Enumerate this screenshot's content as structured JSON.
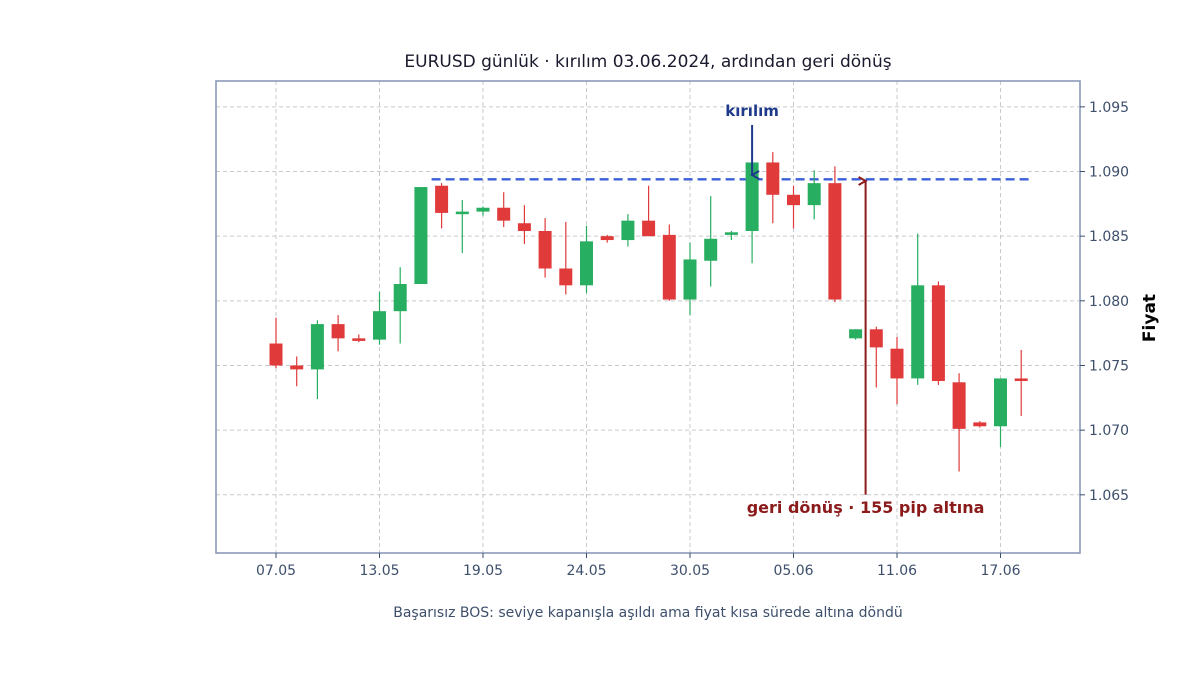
{
  "chart_data": {
    "type": "candlestick",
    "title": "EURUSD günlük · kırılım 03.06.2024, ardından geri dönüş",
    "ylabel": "Fiyat",
    "xlabel": "",
    "caption": "Başarısız BOS: seviye kapanışla aşıldı ama fiyat kısa sürede altına döndü",
    "ylim": [
      1.0605,
      1.097
    ],
    "x_tick_labels": [
      "07.05",
      "13.05",
      "19.05",
      "24.05",
      "30.05",
      "05.06",
      "11.06",
      "17.06"
    ],
    "x_tick_indices": [
      0,
      5,
      10,
      15,
      20,
      25,
      30,
      35
    ],
    "y_ticks": [
      1.065,
      1.07,
      1.075,
      1.08,
      1.085,
      1.09,
      1.095
    ],
    "y_tick_labels": [
      "1.065",
      "1.070",
      "1.075",
      "1.080",
      "1.085",
      "1.090",
      "1.095"
    ],
    "grid": true,
    "colors": {
      "up": "#27ae60",
      "down": "#e03a3a",
      "level": "#3b5fd9",
      "annotation_top": "#1e3a8a",
      "annotation_bottom": "#8b1a1a",
      "frame": "#8a9ab8"
    },
    "level": {
      "value": 1.0894,
      "start_index": 8,
      "end_index": 36
    },
    "candles": [
      {
        "o": 1.0767,
        "h": 1.0787,
        "l": 1.0748,
        "c": 1.075
      },
      {
        "o": 1.075,
        "h": 1.0757,
        "l": 1.0734,
        "c": 1.0747
      },
      {
        "o": 1.0747,
        "h": 1.0785,
        "l": 1.0724,
        "c": 1.0782
      },
      {
        "o": 1.0782,
        "h": 1.0789,
        "l": 1.0761,
        "c": 1.0771
      },
      {
        "o": 1.0771,
        "h": 1.0774,
        "l": 1.0768,
        "c": 1.0769
      },
      {
        "o": 1.077,
        "h": 1.0807,
        "l": 1.0766,
        "c": 1.0792
      },
      {
        "o": 1.0792,
        "h": 1.0826,
        "l": 1.0767,
        "c": 1.0813
      },
      {
        "o": 1.0813,
        "h": 1.0887,
        "l": 1.0813,
        "c": 1.0888
      },
      {
        "o": 1.0889,
        "h": 1.0891,
        "l": 1.0856,
        "c": 1.0868
      },
      {
        "o": 1.0867,
        "h": 1.0878,
        "l": 1.0837,
        "c": 1.0869
      },
      {
        "o": 1.0869,
        "h": 1.0873,
        "l": 1.0866,
        "c": 1.0872
      },
      {
        "o": 1.0872,
        "h": 1.0884,
        "l": 1.0857,
        "c": 1.0862
      },
      {
        "o": 1.086,
        "h": 1.0874,
        "l": 1.0844,
        "c": 1.0854
      },
      {
        "o": 1.0854,
        "h": 1.0864,
        "l": 1.0818,
        "c": 1.0825
      },
      {
        "o": 1.0825,
        "h": 1.0861,
        "l": 1.0805,
        "c": 1.0812
      },
      {
        "o": 1.0812,
        "h": 1.0858,
        "l": 1.0806,
        "c": 1.0846
      },
      {
        "o": 1.085,
        "h": 1.0851,
        "l": 1.0845,
        "c": 1.0847
      },
      {
        "o": 1.0847,
        "h": 1.0867,
        "l": 1.0842,
        "c": 1.0862
      },
      {
        "o": 1.0862,
        "h": 1.0889,
        "l": 1.085,
        "c": 1.085
      },
      {
        "o": 1.0851,
        "h": 1.0859,
        "l": 1.08,
        "c": 1.0801
      },
      {
        "o": 1.0801,
        "h": 1.0845,
        "l": 1.0789,
        "c": 1.0832
      },
      {
        "o": 1.0831,
        "h": 1.0881,
        "l": 1.0811,
        "c": 1.0848
      },
      {
        "o": 1.0851,
        "h": 1.0854,
        "l": 1.0847,
        "c": 1.0853
      },
      {
        "o": 1.0854,
        "h": 1.0907,
        "l": 1.0829,
        "c": 1.0907
      },
      {
        "o": 1.0907,
        "h": 1.0915,
        "l": 1.086,
        "c": 1.0882
      },
      {
        "o": 1.0882,
        "h": 1.0889,
        "l": 1.0856,
        "c": 1.0874
      },
      {
        "o": 1.0874,
        "h": 1.0901,
        "l": 1.0863,
        "c": 1.0891
      },
      {
        "o": 1.0891,
        "h": 1.0904,
        "l": 1.0799,
        "c": 1.0801
      },
      {
        "o": 1.0771,
        "h": 1.0778,
        "l": 1.077,
        "c": 1.0778
      },
      {
        "o": 1.0778,
        "h": 1.078,
        "l": 1.0733,
        "c": 1.0764
      },
      {
        "o": 1.0763,
        "h": 1.0772,
        "l": 1.072,
        "c": 1.074
      },
      {
        "o": 1.074,
        "h": 1.0852,
        "l": 1.0735,
        "c": 1.0812
      },
      {
        "o": 1.0812,
        "h": 1.0815,
        "l": 1.0735,
        "c": 1.0738
      },
      {
        "o": 1.0737,
        "h": 1.0744,
        "l": 1.0668,
        "c": 1.0701
      },
      {
        "o": 1.0706,
        "h": 1.0707,
        "l": 1.0702,
        "c": 1.0703
      },
      {
        "o": 1.0703,
        "h": 1.074,
        "l": 1.0687,
        "c": 1.074
      },
      {
        "o": 1.074,
        "h": 1.0762,
        "l": 1.0711,
        "c": 1.0738
      }
    ],
    "annotations": [
      {
        "text": "kırılım",
        "target_index": 23,
        "target_price": 1.0895,
        "text_price": 1.0943,
        "arrow_from_price": 1.0936
      },
      {
        "text": "geri dönüş · 155 pip altına",
        "target_index": 28,
        "target_price": 1.0895,
        "text_price": 1.0636,
        "arrow_from_price": 1.065
      }
    ]
  }
}
